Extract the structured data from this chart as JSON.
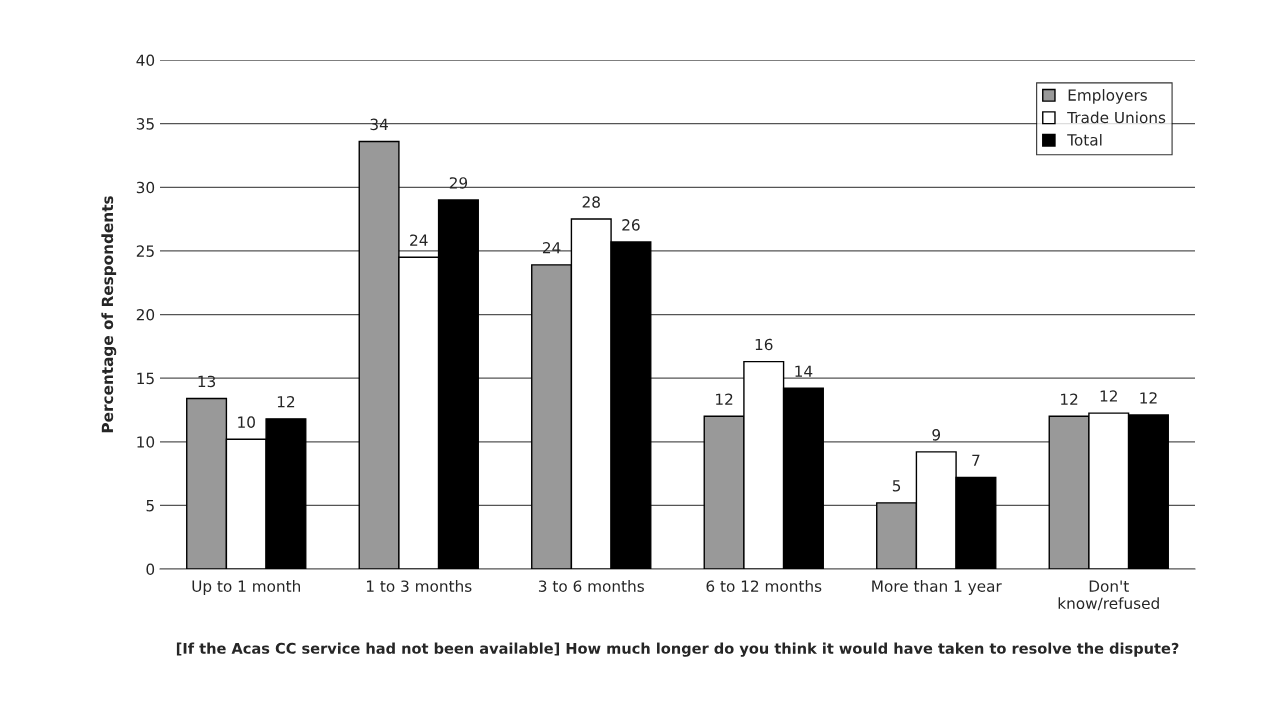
{
  "chart_data": {
    "type": "bar",
    "xlabel": "[If the Acas CC service had not been available] How much longer do you think it would have taken to resolve the dispute?",
    "ylabel": "Percentage of Respondents",
    "categories": [
      "Up to 1 month",
      "1 to 3 months",
      "3 to 6 months",
      "6 to 12 months",
      "More than 1 year",
      "Don't\nknow/refused"
    ],
    "series": [
      {
        "name": "Employers",
        "color": "#999999",
        "values": [
          13.4,
          33.6,
          23.9,
          12.0,
          5.2,
          12.0
        ],
        "value_labels": [
          "13",
          "34",
          "24",
          "12",
          "5",
          "12"
        ]
      },
      {
        "name": "Trade Unions",
        "color": "#ffffff",
        "values": [
          10.2,
          24.5,
          27.5,
          16.3,
          9.2,
          12.25
        ],
        "value_labels": [
          "10",
          "24",
          "28",
          "16",
          "9",
          "12"
        ]
      },
      {
        "name": "Total",
        "color": "#000000",
        "values": [
          11.8,
          29.0,
          25.7,
          14.2,
          7.2,
          12.1
        ],
        "value_labels": [
          "12",
          "29",
          "26",
          "14",
          "7",
          "12"
        ]
      }
    ],
    "ylim": [
      0,
      40
    ],
    "yticks": [
      0,
      5,
      10,
      15,
      20,
      25,
      30,
      35,
      40
    ],
    "grid": "y",
    "legend": "top right"
  }
}
